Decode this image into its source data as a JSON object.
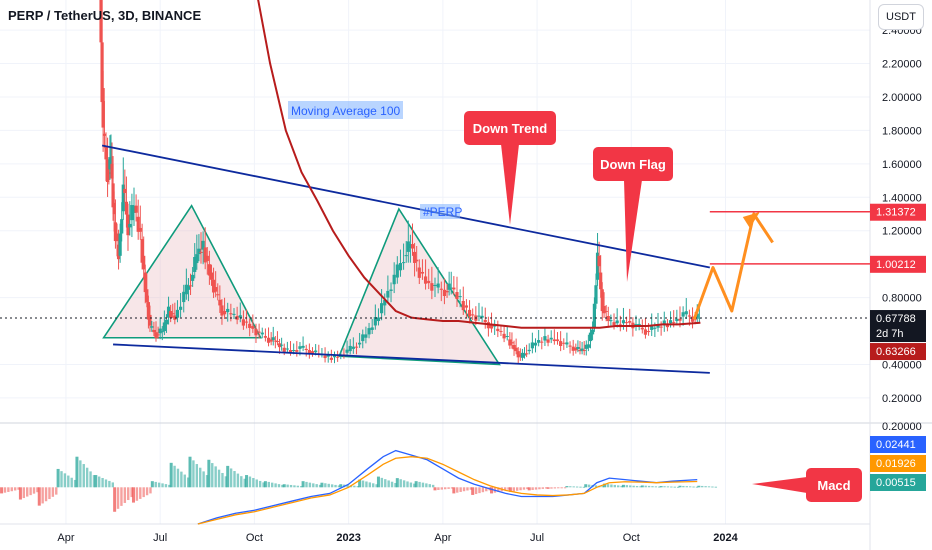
{
  "header": {
    "title": "PERP / TetherUS, 3D, BINANCE",
    "currency_button": "USDT"
  },
  "colors": {
    "up": "#26a69a",
    "down": "#ef5350",
    "ma": "#b71c1c",
    "trend": "#0d2a9e",
    "pattern_line": "#0f9b7c",
    "pattern_fill": "#e8b7be",
    "target": "#ff8f1f",
    "callout": "#f23645",
    "macd_line": "#2962ff",
    "signal_line": "#ff9800",
    "level_line": "#f23645"
  },
  "chart_data": {
    "type": "line",
    "price_axis": {
      "ticks": [
        {
          "v": 2.4,
          "label": "2.40000"
        },
        {
          "v": 2.2,
          "label": "2.20000"
        },
        {
          "v": 2.0,
          "label": "2.00000"
        },
        {
          "v": 1.8,
          "label": "1.80000"
        },
        {
          "v": 1.6,
          "label": "1.60000"
        },
        {
          "v": 1.4,
          "label": "1.40000"
        },
        {
          "v": 1.2,
          "label": "1.20000"
        },
        {
          "v": 0.8,
          "label": "0.80000"
        },
        {
          "v": 0.4,
          "label": "0.40000"
        },
        {
          "v": 0.2,
          "label": "0.20000"
        }
      ],
      "ylim": [
        0.08,
        2.58
      ]
    },
    "macd_axis": {
      "ticks": [
        {
          "v": 0.2,
          "label": "0.20000"
        }
      ],
      "ylim": [
        -0.12,
        0.22
      ]
    },
    "time_axis": {
      "labels": [
        {
          "t": 3,
          "label": "Apr",
          "bold": false
        },
        {
          "t": 6,
          "label": "Jul",
          "bold": false
        },
        {
          "t": 9,
          "label": "Oct",
          "bold": false
        },
        {
          "t": 12,
          "label": "2023",
          "bold": true
        },
        {
          "t": 15,
          "label": "Apr",
          "bold": false
        },
        {
          "t": 18,
          "label": "Jul",
          "bold": false
        },
        {
          "t": 21,
          "label": "Oct",
          "bold": false
        },
        {
          "t": 24,
          "label": "2024",
          "bold": true
        }
      ],
      "xlim": [
        0.9,
        28.6
      ]
    },
    "price_badges": [
      {
        "label": "1.31372",
        "v": 1.31372,
        "color": "#f23645",
        "line": true
      },
      {
        "label": "1.00212",
        "v": 1.00212,
        "color": "#f23645",
        "line": true
      },
      {
        "label": "0.67788",
        "sub": "2d 7h",
        "v": 0.67788,
        "color": "#131722",
        "line": false
      },
      {
        "label": "0.63266",
        "v": 0.63266,
        "color": "#b71c1c",
        "line": false
      }
    ],
    "macd_badges": [
      {
        "label": "0.02441",
        "v": 0.02441,
        "color": "#2962ff"
      },
      {
        "label": "0.01926",
        "v": 0.01926,
        "color": "#ff9800"
      },
      {
        "label": "0.00515",
        "v": 0.00515,
        "color": "#26a69a"
      }
    ],
    "price_path": [
      [
        4.1,
        2.6
      ],
      [
        4.2,
        1.78
      ],
      [
        4.35,
        1.55
      ],
      [
        4.45,
        1.6
      ],
      [
        4.55,
        1.25
      ],
      [
        4.7,
        1.05
      ],
      [
        4.85,
        1.45
      ],
      [
        5.0,
        1.22
      ],
      [
        5.2,
        1.35
      ],
      [
        5.4,
        1.15
      ],
      [
        5.55,
        0.85
      ],
      [
        5.7,
        0.62
      ],
      [
        5.9,
        0.58
      ],
      [
        6.1,
        0.6
      ],
      [
        6.3,
        0.72
      ],
      [
        6.5,
        0.68
      ],
      [
        6.8,
        0.82
      ],
      [
        7.0,
        0.9
      ],
      [
        7.2,
        1.06
      ],
      [
        7.4,
        1.1
      ],
      [
        7.6,
        0.95
      ],
      [
        7.8,
        0.82
      ],
      [
        8.0,
        0.72
      ],
      [
        8.3,
        0.7
      ],
      [
        8.6,
        0.67
      ],
      [
        8.9,
        0.63
      ],
      [
        9.2,
        0.58
      ],
      [
        9.5,
        0.55
      ],
      [
        9.7,
        0.54
      ],
      [
        9.9,
        0.5
      ],
      [
        10.2,
        0.48
      ],
      [
        10.5,
        0.5
      ],
      [
        10.8,
        0.48
      ],
      [
        11.1,
        0.46
      ],
      [
        11.4,
        0.44
      ],
      [
        11.7,
        0.45
      ],
      [
        12.0,
        0.48
      ],
      [
        12.3,
        0.52
      ],
      [
        12.6,
        0.58
      ],
      [
        12.9,
        0.66
      ],
      [
        13.2,
        0.8
      ],
      [
        13.5,
        0.92
      ],
      [
        13.8,
        1.05
      ],
      [
        14.0,
        1.12
      ],
      [
        14.2,
        0.98
      ],
      [
        14.5,
        0.9
      ],
      [
        14.8,
        0.86
      ],
      [
        15.1,
        0.84
      ],
      [
        15.3,
        0.86
      ],
      [
        15.6,
        0.78
      ],
      [
        15.9,
        0.7
      ],
      [
        16.2,
        0.68
      ],
      [
        16.5,
        0.64
      ],
      [
        16.8,
        0.6
      ],
      [
        17.1,
        0.55
      ],
      [
        17.3,
        0.5
      ],
      [
        17.5,
        0.44
      ],
      [
        17.7,
        0.48
      ],
      [
        18.0,
        0.53
      ],
      [
        18.3,
        0.55
      ],
      [
        18.6,
        0.55
      ],
      [
        18.9,
        0.52
      ],
      [
        19.2,
        0.5
      ],
      [
        19.4,
        0.48
      ],
      [
        19.6,
        0.5
      ],
      [
        19.8,
        0.62
      ],
      [
        19.95,
        1.05
      ],
      [
        20.1,
        0.75
      ],
      [
        20.3,
        0.66
      ],
      [
        20.6,
        0.64
      ],
      [
        20.9,
        0.66
      ],
      [
        21.2,
        0.63
      ],
      [
        21.5,
        0.6
      ],
      [
        21.8,
        0.62
      ],
      [
        22.1,
        0.64
      ],
      [
        22.4,
        0.66
      ],
      [
        22.7,
        0.7
      ],
      [
        23.0,
        0.68
      ],
      [
        23.2,
        0.68
      ]
    ],
    "series": [
      {
        "name": "Moving Average 100",
        "points": [
          [
            9.1,
            2.6
          ],
          [
            9.5,
            2.2
          ],
          [
            10.0,
            1.8
          ],
          [
            10.5,
            1.55
          ],
          [
            11.0,
            1.38
          ],
          [
            11.5,
            1.2
          ],
          [
            12.0,
            1.05
          ],
          [
            12.5,
            0.92
          ],
          [
            13.0,
            0.82
          ],
          [
            13.5,
            0.72
          ],
          [
            14.0,
            0.68
          ],
          [
            14.5,
            0.67
          ],
          [
            15.0,
            0.66
          ],
          [
            15.5,
            0.66
          ],
          [
            16.0,
            0.65
          ],
          [
            16.5,
            0.64
          ],
          [
            17.0,
            0.63
          ],
          [
            17.5,
            0.62
          ],
          [
            18.0,
            0.62
          ],
          [
            18.5,
            0.62
          ],
          [
            19.0,
            0.62
          ],
          [
            19.5,
            0.62
          ],
          [
            20.0,
            0.62
          ],
          [
            20.5,
            0.63
          ],
          [
            21.0,
            0.63
          ],
          [
            21.5,
            0.63
          ],
          [
            22.0,
            0.64
          ],
          [
            22.5,
            0.64
          ],
          [
            23.2,
            0.65
          ]
        ]
      },
      {
        "name": "MACD",
        "points": [
          [
            7.2,
            -0.12
          ],
          [
            7.8,
            -0.1
          ],
          [
            8.4,
            -0.085
          ],
          [
            9.0,
            -0.075
          ],
          [
            9.6,
            -0.06
          ],
          [
            10.2,
            -0.045
          ],
          [
            10.8,
            -0.03
          ],
          [
            11.4,
            -0.02
          ],
          [
            12.0,
            0.01
          ],
          [
            12.6,
            0.06
          ],
          [
            13.1,
            0.1
          ],
          [
            13.5,
            0.12
          ],
          [
            14.0,
            0.105
          ],
          [
            14.5,
            0.09
          ],
          [
            15.0,
            0.06
          ],
          [
            15.5,
            0.03
          ],
          [
            16.0,
            0.01
          ],
          [
            16.5,
            -0.005
          ],
          [
            17.0,
            -0.02
          ],
          [
            17.5,
            -0.03
          ],
          [
            18.0,
            -0.03
          ],
          [
            18.5,
            -0.03
          ],
          [
            19.0,
            -0.025
          ],
          [
            19.5,
            -0.02
          ],
          [
            19.9,
            0.015
          ],
          [
            20.3,
            0.03
          ],
          [
            20.8,
            0.025
          ],
          [
            21.3,
            0.02
          ],
          [
            21.8,
            0.015
          ],
          [
            22.3,
            0.02
          ],
          [
            23.1,
            0.025
          ]
        ]
      },
      {
        "name": "Signal",
        "points": [
          [
            7.2,
            -0.12
          ],
          [
            7.8,
            -0.105
          ],
          [
            8.4,
            -0.09
          ],
          [
            9.0,
            -0.08
          ],
          [
            9.6,
            -0.065
          ],
          [
            10.2,
            -0.05
          ],
          [
            10.8,
            -0.035
          ],
          [
            11.4,
            -0.025
          ],
          [
            12.0,
            0.0
          ],
          [
            12.6,
            0.04
          ],
          [
            13.1,
            0.075
          ],
          [
            13.5,
            0.095
          ],
          [
            14.0,
            0.1
          ],
          [
            14.5,
            0.095
          ],
          [
            15.0,
            0.075
          ],
          [
            15.5,
            0.05
          ],
          [
            16.0,
            0.025
          ],
          [
            16.5,
            0.005
          ],
          [
            17.0,
            -0.01
          ],
          [
            17.5,
            -0.02
          ],
          [
            18.0,
            -0.025
          ],
          [
            18.5,
            -0.027
          ],
          [
            19.0,
            -0.025
          ],
          [
            19.5,
            -0.02
          ],
          [
            19.9,
            0.0
          ],
          [
            20.3,
            0.015
          ],
          [
            20.8,
            0.018
          ],
          [
            21.3,
            0.017
          ],
          [
            21.8,
            0.015
          ],
          [
            22.3,
            0.017
          ],
          [
            23.1,
            0.019
          ]
        ]
      }
    ],
    "annotations": {
      "ma_label": "Moving Average 100",
      "symbol_tag": "#PERP",
      "callouts": [
        "Down Trend",
        "Down Flag",
        "Macd"
      ]
    },
    "trendlines": {
      "upper": [
        [
          4.15,
          1.71
        ],
        [
          23.5,
          0.98
        ]
      ],
      "lower": [
        [
          4.5,
          0.52
        ],
        [
          23.5,
          0.35
        ]
      ]
    },
    "patterns": [
      [
        [
          4.2,
          0.56
        ],
        [
          7.0,
          1.35
        ],
        [
          9.2,
          0.56
        ]
      ],
      [
        [
          11.7,
          0.45
        ],
        [
          13.6,
          1.33
        ],
        [
          16.8,
          0.4
        ]
      ]
    ],
    "target_path": [
      [
        23.0,
        0.67
      ],
      [
        23.6,
        0.98
      ],
      [
        24.2,
        0.72
      ],
      [
        24.9,
        1.3
      ],
      [
        25.5,
        1.13
      ]
    ],
    "macd_hist": [
      [
        0.95,
        -0.02
      ],
      [
        1.55,
        -0.04
      ],
      [
        2.15,
        -0.06
      ],
      [
        2.75,
        0.06
      ],
      [
        3.35,
        0.1
      ],
      [
        3.95,
        0.04
      ],
      [
        4.55,
        -0.08
      ],
      [
        5.15,
        -0.05
      ],
      [
        5.75,
        0.02
      ],
      [
        6.35,
        0.08
      ],
      [
        6.95,
        0.1
      ],
      [
        7.55,
        0.09
      ],
      [
        8.15,
        0.07
      ],
      [
        8.75,
        0.04
      ],
      [
        9.35,
        0.02
      ],
      [
        9.95,
        0.01
      ],
      [
        10.55,
        0.02
      ],
      [
        11.15,
        0.015
      ],
      [
        11.75,
        0.01
      ],
      [
        12.35,
        0.025
      ],
      [
        12.95,
        0.035
      ],
      [
        13.55,
        0.03
      ],
      [
        14.15,
        0.02
      ],
      [
        14.75,
        -0.01
      ],
      [
        15.35,
        -0.02
      ],
      [
        15.95,
        -0.025
      ],
      [
        16.55,
        -0.02
      ],
      [
        17.15,
        -0.015
      ],
      [
        17.75,
        -0.01
      ],
      [
        18.35,
        -0.005
      ],
      [
        18.95,
        0.004
      ],
      [
        19.55,
        0.01
      ],
      [
        20.15,
        0.012
      ],
      [
        20.75,
        0.008
      ],
      [
        21.35,
        0.006
      ],
      [
        21.95,
        0.004
      ],
      [
        22.55,
        0.005
      ],
      [
        23.15,
        0.005
      ]
    ]
  }
}
